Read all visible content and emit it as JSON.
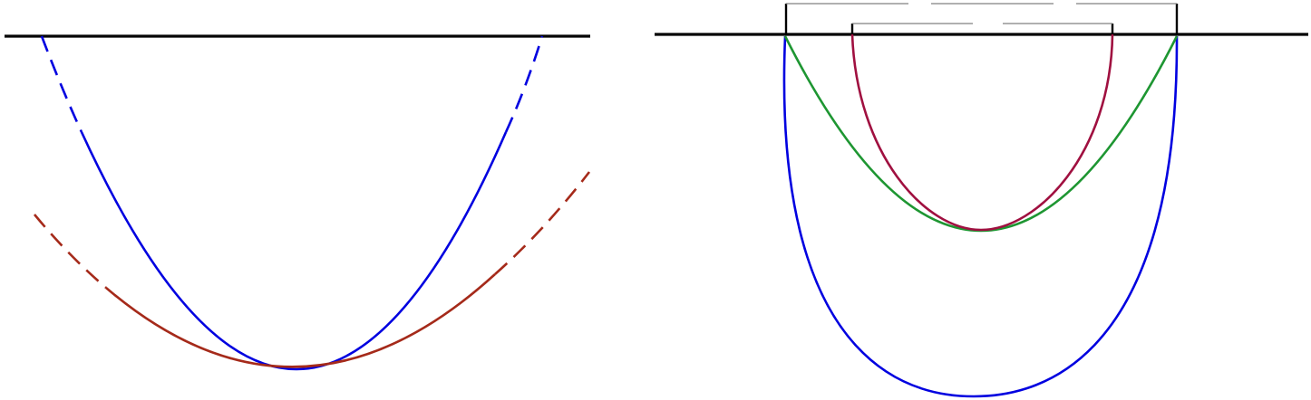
{
  "colors": {
    "background": "#ffffff",
    "baseline": "#000000",
    "blue_curve": "#0000e0",
    "rust_curve": "#a52a1a",
    "green_curve": "#1e9632",
    "crimson_curve": "#a01040",
    "dashed_box": "#808080"
  },
  "left_panel": {
    "baseline": true,
    "curves": [
      {
        "id": "blue-parabola",
        "color_key": "blue_curve",
        "shape": "parabola",
        "dashed_ends": true
      },
      {
        "id": "rust-parabola",
        "color_key": "rust_curve",
        "shape": "parabola",
        "dashed_ends": true
      }
    ]
  },
  "right_panel": {
    "baseline": true,
    "curves": [
      {
        "id": "blue-u-curve",
        "color_key": "blue_curve",
        "shape": "deep-u"
      },
      {
        "id": "green-parabola",
        "color_key": "green_curve",
        "shape": "parabola"
      },
      {
        "id": "crimson-u-curve",
        "color_key": "crimson_curve",
        "shape": "narrow-u"
      }
    ],
    "bracket_boxes": [
      {
        "id": "outer-bracket",
        "style": "dashed-top"
      },
      {
        "id": "inner-bracket",
        "style": "dashed-top"
      }
    ]
  }
}
